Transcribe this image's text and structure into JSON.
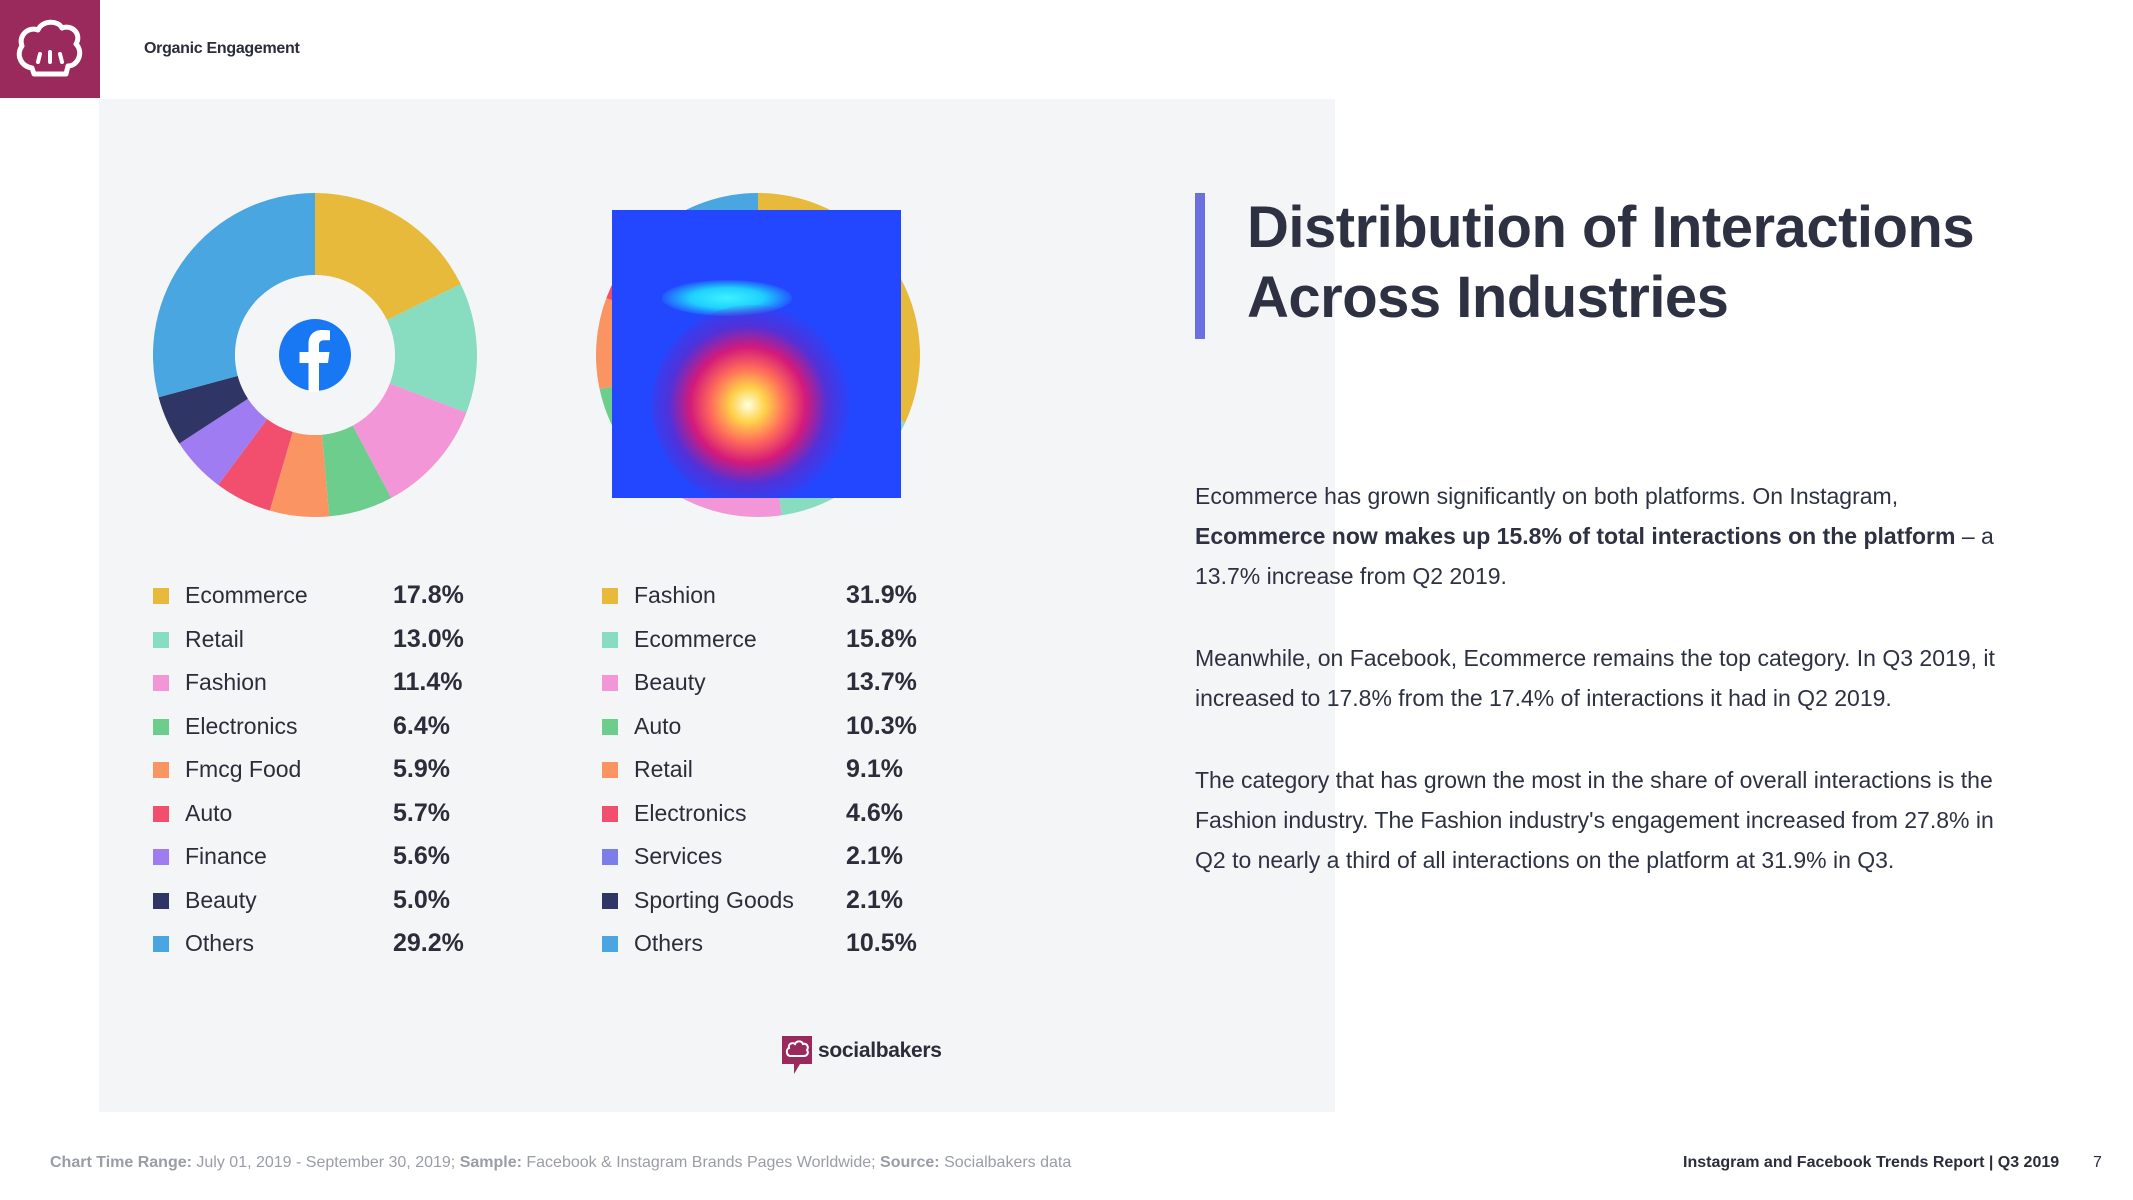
{
  "header": {
    "section_label": "Organic Engagement",
    "brand_color": "#9b2a5c"
  },
  "chart_data": [
    {
      "type": "pie",
      "platform": "Facebook",
      "center_icon": "facebook-icon",
      "categories": [
        "Ecommerce",
        "Retail",
        "Fashion",
        "Electronics",
        "Fmcg Food",
        "Auto",
        "Finance",
        "Beauty",
        "Others"
      ],
      "values": [
        17.8,
        13.0,
        11.4,
        6.4,
        5.9,
        5.7,
        5.6,
        5.0,
        29.2
      ],
      "labels": [
        "17.8%",
        "13.0%",
        "11.4%",
        "6.4%",
        "5.9%",
        "5.7%",
        "5.6%",
        "5.0%",
        "29.2%"
      ],
      "colors": [
        "#e8ba3c",
        "#88dcbf",
        "#f296d8",
        "#6ccd8c",
        "#fb9463",
        "#f24e6d",
        "#a07cf2",
        "#2f3565",
        "#49a6e0"
      ]
    },
    {
      "type": "pie",
      "platform": "Instagram",
      "categories": [
        "Fashion",
        "Ecommerce",
        "Beauty",
        "Auto",
        "Retail",
        "Electronics",
        "Services",
        "Sporting Goods",
        "Others"
      ],
      "values": [
        31.9,
        15.8,
        13.7,
        10.3,
        9.1,
        4.6,
        2.1,
        2.1,
        10.5
      ],
      "labels": [
        "31.9%",
        "15.8%",
        "13.7%",
        "10.3%",
        "9.1%",
        "4.6%",
        "2.1%",
        "2.1%",
        "10.5%"
      ],
      "legend_colors": [
        "#e8ba3c",
        "#88dcbf",
        "#f296d8",
        "#6ccd8c",
        "#fb9463",
        "#f24e6d",
        "#7b7ee8",
        "#2f3565",
        "#49a6e0"
      ]
    }
  ],
  "brand": {
    "name": "socialbakers"
  },
  "title": {
    "line1": "Distribution of Interactions",
    "line2": "Across Industries"
  },
  "body": {
    "p1_a": "Ecommerce has grown significantly on both platforms. On Instagram,",
    "p1_b_bold": "Ecommerce now makes up 15.8% of total interactions on the platform",
    "p1_c": " – a 13.7% increase from Q2 2019.",
    "p2": "Meanwhile, on Facebook, Ecommerce remains the top category. In Q3 2019, it increased to 17.8% from the 17.4% of interactions it had in Q2 2019.",
    "p3": "The category that has grown the most in the share of overall interactions is the Fashion industry. The Fashion industry's engagement increased from 27.8% in Q2 to nearly a third of all interactions on the platform at 31.9% in Q3."
  },
  "footer": {
    "range_label": "Chart Time Range:",
    "range_value": " July 01, 2019 - September 30, 2019; ",
    "sample_label": "Sample:",
    "sample_value": " Facebook & Instagram Brands Pages Worldwide; ",
    "source_label": "Source:",
    "source_value": " Socialbakers data",
    "report": "Instagram and Facebook Trends Report | Q3 2019",
    "page": "7"
  }
}
